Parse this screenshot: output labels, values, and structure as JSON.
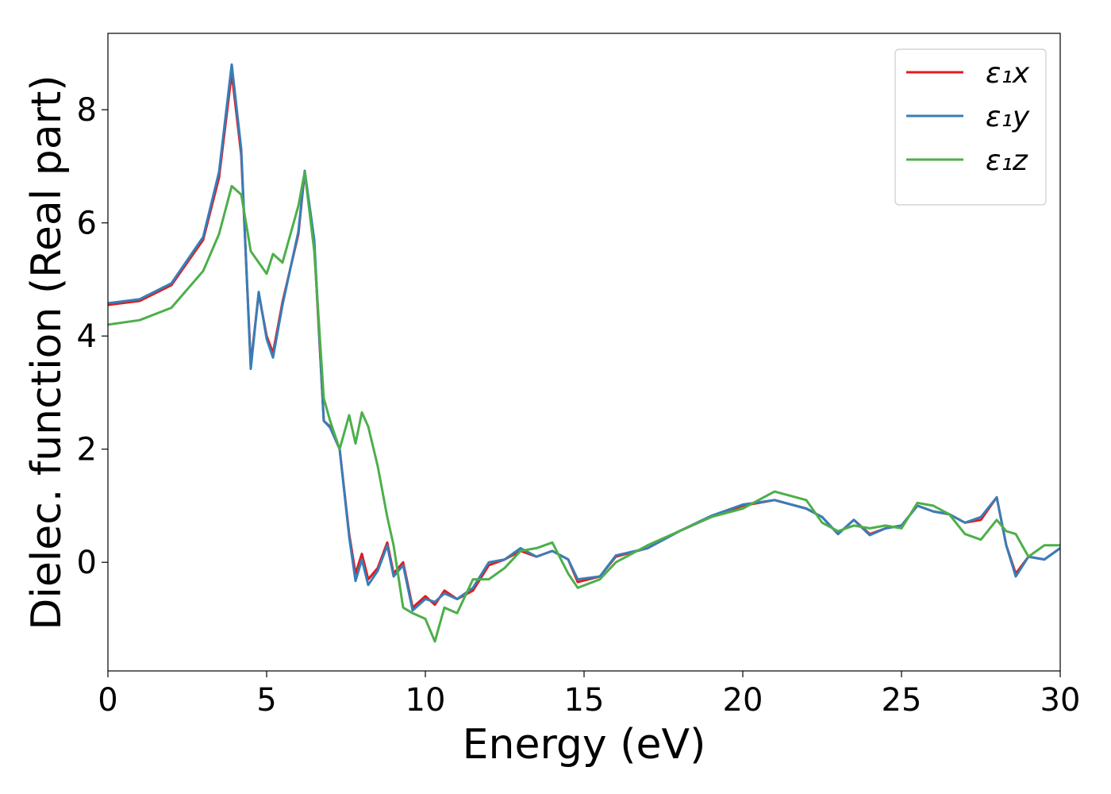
{
  "chart_data": {
    "type": "line",
    "xlabel": "Energy (eV)",
    "ylabel": "Dielec. function (Real part)",
    "x": [
      0,
      1,
      2,
      3,
      3.5,
      3.9,
      4.2,
      4.5,
      4.75,
      5.0,
      5.2,
      5.5,
      6.0,
      6.2,
      6.5,
      6.8,
      7.0,
      7.3,
      7.6,
      7.8,
      8.0,
      8.2,
      8.5,
      8.8,
      9.0,
      9.3,
      9.6,
      10.0,
      10.3,
      10.6,
      11.0,
      11.5,
      12,
      12.5,
      13,
      13.5,
      14,
      14.5,
      14.8,
      15.5,
      16,
      17,
      18,
      19,
      20,
      21,
      22,
      22.5,
      23,
      23.5,
      24,
      24.5,
      25,
      25.5,
      26,
      26.5,
      27,
      27.5,
      28,
      28.3,
      28.6,
      29,
      29.5,
      30
    ],
    "series": [
      {
        "name": "ε₁x",
        "color": "#e41a1c",
        "values": [
          4.55,
          4.62,
          4.9,
          5.7,
          6.8,
          8.65,
          7.2,
          3.5,
          4.75,
          4.0,
          3.7,
          4.6,
          5.8,
          6.9,
          5.6,
          2.5,
          2.4,
          2.0,
          0.5,
          -0.2,
          0.15,
          -0.3,
          -0.1,
          0.35,
          -0.2,
          0.0,
          -0.8,
          -0.6,
          -0.75,
          -0.5,
          -0.65,
          -0.5,
          -0.05,
          0.05,
          0.2,
          0.1,
          0.2,
          0.05,
          -0.35,
          -0.25,
          0.1,
          0.25,
          0.55,
          0.8,
          1.0,
          1.1,
          0.95,
          0.8,
          0.5,
          0.75,
          0.5,
          0.6,
          0.65,
          1.0,
          0.9,
          0.85,
          0.7,
          0.75,
          1.15,
          0.3,
          -0.2,
          0.1,
          0.05,
          0.25
        ]
      },
      {
        "name": "ε₁y",
        "color": "#377eb8",
        "values": [
          4.58,
          4.65,
          4.93,
          5.75,
          6.9,
          8.8,
          7.3,
          3.42,
          4.78,
          3.95,
          3.62,
          4.55,
          5.85,
          6.92,
          5.7,
          2.5,
          2.38,
          2.0,
          0.45,
          -0.33,
          0.05,
          -0.4,
          -0.15,
          0.3,
          -0.25,
          -0.05,
          -0.85,
          -0.65,
          -0.7,
          -0.55,
          -0.65,
          -0.45,
          0.0,
          0.05,
          0.25,
          0.1,
          0.2,
          0.05,
          -0.3,
          -0.25,
          0.12,
          0.25,
          0.55,
          0.82,
          1.02,
          1.1,
          0.95,
          0.8,
          0.5,
          0.75,
          0.48,
          0.6,
          0.65,
          1.0,
          0.9,
          0.85,
          0.7,
          0.8,
          1.15,
          0.3,
          -0.25,
          0.1,
          0.05,
          0.25
        ]
      },
      {
        "name": "ε₁z",
        "color": "#4daf4a",
        "values": [
          4.2,
          4.28,
          4.5,
          5.15,
          5.8,
          6.65,
          6.5,
          5.5,
          5.3,
          5.1,
          5.45,
          5.3,
          6.3,
          6.9,
          5.5,
          2.9,
          2.5,
          2.0,
          2.6,
          2.1,
          2.65,
          2.4,
          1.7,
          0.8,
          0.3,
          -0.8,
          -0.9,
          -1.0,
          -1.4,
          -0.8,
          -0.9,
          -0.3,
          -0.3,
          -0.1,
          0.2,
          0.25,
          0.35,
          -0.2,
          -0.45,
          -0.3,
          0.0,
          0.3,
          0.55,
          0.8,
          0.95,
          1.25,
          1.1,
          0.7,
          0.55,
          0.65,
          0.6,
          0.65,
          0.6,
          1.05,
          1.0,
          0.85,
          0.5,
          0.4,
          0.75,
          0.55,
          0.5,
          0.1,
          0.3,
          0.3
        ]
      }
    ],
    "xlim": [
      0,
      30
    ],
    "ylim": [
      -1.92,
      9.35
    ],
    "xticks": [
      0,
      5,
      10,
      15,
      20,
      25,
      30
    ],
    "yticks": [
      0,
      2,
      4,
      6,
      8
    ],
    "legend": "upper right"
  }
}
